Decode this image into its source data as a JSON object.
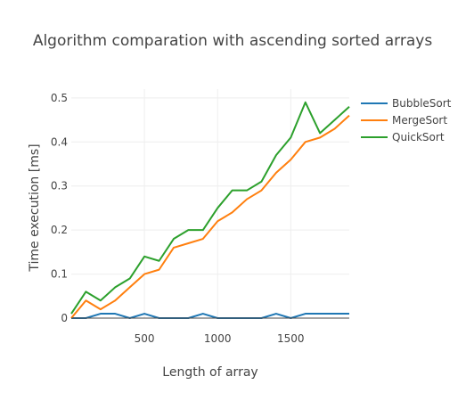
{
  "chart_data": {
    "type": "line",
    "title": "Algorithm comparation with ascending sorted arrays",
    "xlabel": "Length of array",
    "ylabel": "Time execution [ms]",
    "xlim": [
      0,
      1900
    ],
    "ylim": [
      0,
      0.52
    ],
    "x_ticks": [
      {
        "value": 500,
        "label": "500"
      },
      {
        "value": 1000,
        "label": "1000"
      },
      {
        "value": 1500,
        "label": "1500"
      }
    ],
    "y_ticks": [
      {
        "value": 0,
        "label": "0"
      },
      {
        "value": 0.1,
        "label": "0.1"
      },
      {
        "value": 0.2,
        "label": "0.2"
      },
      {
        "value": 0.3,
        "label": "0.3"
      },
      {
        "value": 0.4,
        "label": "0.4"
      },
      {
        "value": 0.5,
        "label": "0.5"
      }
    ],
    "grid": true,
    "legend_position": "top-right",
    "x": [
      0,
      100,
      200,
      300,
      400,
      500,
      600,
      700,
      800,
      900,
      1000,
      1100,
      1200,
      1300,
      1400,
      1500,
      1600,
      1700,
      1800,
      1900
    ],
    "series": [
      {
        "name": "BubbleSort",
        "color": "#1f77b4",
        "values": [
          0,
          0,
          0.01,
          0.01,
          0,
          0.01,
          0,
          0,
          0,
          0.01,
          0,
          0,
          0,
          0,
          0.01,
          0,
          0.01,
          0.01,
          0.01,
          0.01
        ]
      },
      {
        "name": "MergeSort",
        "color": "#ff7f0e",
        "values": [
          0,
          0.04,
          0.02,
          0.04,
          0.07,
          0.1,
          0.11,
          0.16,
          0.17,
          0.18,
          0.22,
          0.24,
          0.27,
          0.29,
          0.33,
          0.36,
          0.4,
          0.41,
          0.43,
          0.46
        ]
      },
      {
        "name": "QuickSort",
        "color": "#2ca02c",
        "values": [
          0.01,
          0.06,
          0.04,
          0.07,
          0.09,
          0.14,
          0.13,
          0.18,
          0.2,
          0.2,
          0.25,
          0.29,
          0.29,
          0.31,
          0.37,
          0.41,
          0.49,
          0.42,
          0.45,
          0.48
        ]
      }
    ]
  }
}
